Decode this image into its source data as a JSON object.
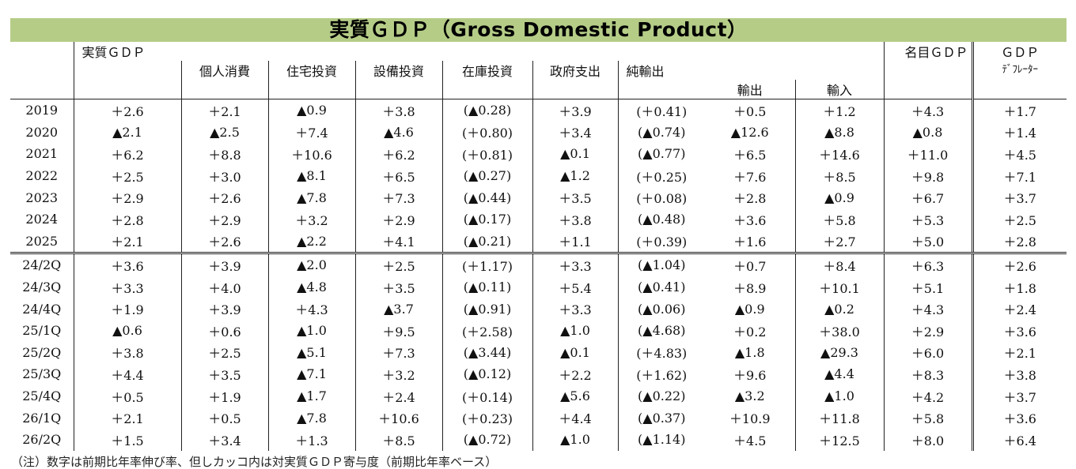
{
  "title": "実質ＧＤＰ（Gross Domestic Product）",
  "headers": {
    "real_gdp": "実質ＧＤＰ",
    "private_consumption": "個人消費",
    "housing_investment": "住宅投資",
    "equipment_investment": "設備投資",
    "inventory_investment": "在庫投資",
    "government_spending": "政府支出",
    "net_exports": "純輸出",
    "exports": "輸出",
    "imports": "輸入",
    "nominal_gdp": "名目ＧＤＰ",
    "gdp_deflator_top": "ＧＤＰ",
    "gdp_deflator_bottom": "ﾃﾞﾌﾚｰﾀｰ"
  },
  "annual_rows": [
    {
      "label": "2019",
      "v": [
        "＋2.6",
        "＋2.1",
        "▲0.9",
        "＋3.8",
        "(▲0.28)",
        "＋3.9",
        "(＋0.41)",
        "＋0.5",
        "＋1.2",
        "＋4.3",
        "＋1.7"
      ]
    },
    {
      "label": "2020",
      "v": [
        "▲2.1",
        "▲2.5",
        "＋7.4",
        "▲4.6",
        "(＋0.80)",
        "＋3.4",
        "(▲0.74)",
        "▲12.6",
        "▲8.8",
        "▲0.8",
        "＋1.4"
      ]
    },
    {
      "label": "2021",
      "v": [
        "＋6.2",
        "＋8.8",
        "＋10.6",
        "＋6.2",
        "(＋0.81)",
        "▲0.1",
        "(▲0.77)",
        "＋6.5",
        "＋14.6",
        "＋11.0",
        "＋4.5"
      ]
    },
    {
      "label": "2022",
      "v": [
        "＋2.5",
        "＋3.0",
        "▲8.1",
        "＋6.5",
        "(▲0.27)",
        "▲1.2",
        "(＋0.25)",
        "＋7.6",
        "＋8.5",
        "＋9.8",
        "＋7.1"
      ]
    },
    {
      "label": "2023",
      "v": [
        "＋2.9",
        "＋2.6",
        "▲7.8",
        "＋7.3",
        "(▲0.44)",
        "＋3.5",
        "(＋0.08)",
        "＋2.8",
        "▲0.9",
        "＋6.7",
        "＋3.7"
      ]
    },
    {
      "label": "2024",
      "v": [
        "＋2.8",
        "＋2.9",
        "＋3.2",
        "＋2.9",
        "(▲0.17)",
        "＋3.8",
        "(▲0.48)",
        "＋3.6",
        "＋5.8",
        "＋5.3",
        "＋2.5"
      ]
    },
    {
      "label": "2025",
      "v": [
        "＋2.1",
        "＋2.6",
        "▲2.2",
        "＋4.1",
        "(▲0.21)",
        "＋1.1",
        "(＋0.39)",
        "＋1.6",
        "＋2.7",
        "＋5.0",
        "＋2.8"
      ]
    }
  ],
  "quarterly_rows": [
    {
      "label": "24/2Q",
      "v": [
        "＋3.6",
        "＋3.9",
        "▲2.0",
        "＋2.5",
        "(＋1.17)",
        "＋3.3",
        "(▲1.04)",
        "＋0.7",
        "＋8.4",
        "＋6.3",
        "＋2.6"
      ]
    },
    {
      "label": "24/3Q",
      "v": [
        "＋3.3",
        "＋4.0",
        "▲4.8",
        "＋3.5",
        "(▲0.11)",
        "＋5.4",
        "(▲0.41)",
        "＋8.9",
        "＋10.1",
        "＋5.1",
        "＋1.8"
      ]
    },
    {
      "label": "24/4Q",
      "v": [
        "＋1.9",
        "＋3.9",
        "＋4.3",
        "▲3.7",
        "(▲0.91)",
        "＋3.3",
        "(▲0.06)",
        "▲0.9",
        "▲0.2",
        "＋4.3",
        "＋2.4"
      ]
    },
    {
      "label": "25/1Q",
      "v": [
        "▲0.6",
        "＋0.6",
        "▲1.0",
        "＋9.5",
        "(＋2.58)",
        "▲1.0",
        "(▲4.68)",
        "＋0.2",
        "＋38.0",
        "＋2.9",
        "＋3.6"
      ]
    },
    {
      "label": "25/2Q",
      "v": [
        "＋3.8",
        "＋2.5",
        "▲5.1",
        "＋7.3",
        "(▲3.44)",
        "▲0.1",
        "(＋4.83)",
        "▲1.8",
        "▲29.3",
        "＋6.0",
        "＋2.1"
      ]
    },
    {
      "label": "25/3Q",
      "v": [
        "＋4.4",
        "＋3.5",
        "▲7.1",
        "＋3.2",
        "(▲0.12)",
        "＋2.2",
        "(＋1.62)",
        "＋9.6",
        "▲4.4",
        "＋8.3",
        "＋3.8"
      ]
    },
    {
      "label": "25/4Q",
      "v": [
        "＋0.5",
        "＋1.9",
        "▲1.7",
        "＋2.4",
        "(＋0.14)",
        "▲5.6",
        "(▲0.22)",
        "▲3.2",
        "▲1.0",
        "＋4.2",
        "＋3.7"
      ]
    },
    {
      "label": "26/1Q",
      "v": [
        "＋2.1",
        "＋0.5",
        "▲7.8",
        "＋10.6",
        "(＋0.23)",
        "＋4.4",
        "(▲0.37)",
        "＋10.9",
        "＋11.8",
        "＋5.8",
        "＋3.6"
      ]
    },
    {
      "label": "26/2Q",
      "v": [
        "＋1.5",
        "＋3.4",
        "＋1.3",
        "＋8.5",
        "(▲0.72)",
        "▲1.0",
        "(▲1.14)",
        "＋4.5",
        "＋12.5",
        "＋8.0",
        "＋6.4"
      ]
    }
  ],
  "note": "（注）数字は前期比年率伸び率、但しカッコ内は対実質ＧＤＰ寄与度（前期比年率ベース）"
}
